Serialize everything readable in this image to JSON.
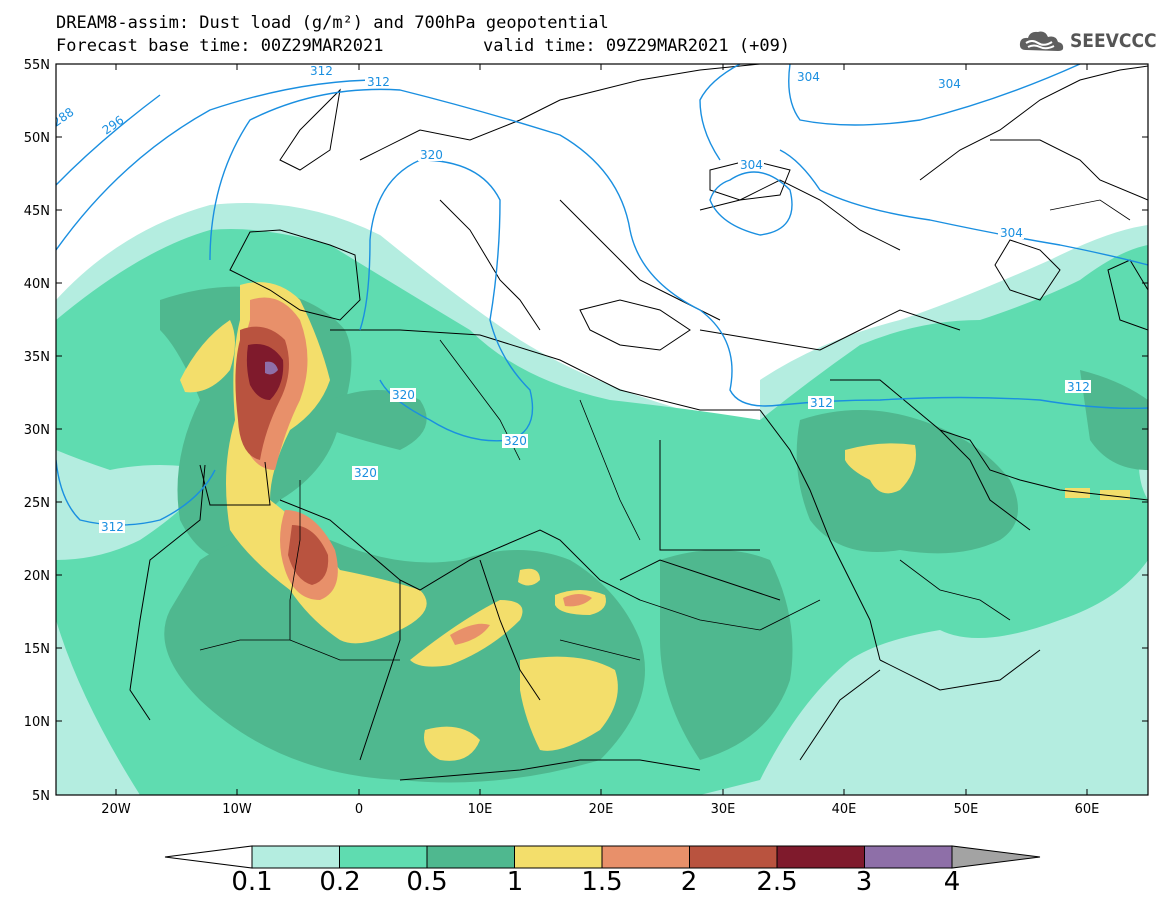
{
  "title_line1": "DREAM8-assim: Dust load (g/m²) and 700hPa geopotential",
  "title_line2": "Forecast base time: 00Z29MAR2021",
  "title_line3": "valid time: 09Z29MAR2021 (+09)",
  "logo_text": "SEEVCCC",
  "lat_labels": [
    "55N",
    "50N",
    "45N",
    "40N",
    "35N",
    "30N",
    "25N",
    "20N",
    "15N",
    "10N",
    "5N"
  ],
  "lon_labels": [
    "20W",
    "10W",
    "0",
    "10E",
    "20E",
    "30E",
    "40E",
    "50E",
    "60E"
  ],
  "contour_labels": {
    "c288": "288",
    "c296": "296",
    "c304a": "304",
    "c304b": "304",
    "c304c": "304",
    "c304d": "304",
    "c312a": "312",
    "c312b": "312",
    "c312c": "312",
    "c312d": "312",
    "c320a": "320",
    "c320b": "320",
    "c320c": "320",
    "c320d": "320"
  },
  "colorbar": {
    "labels": [
      "0.1",
      "0.2",
      "0.5",
      "1",
      "1.5",
      "2",
      "2.5",
      "3",
      "4"
    ],
    "colors": [
      "#b4ede0",
      "#5fdcb0",
      "#4fb88f",
      "#f3de6b",
      "#e8906a",
      "#b9533f",
      "#7f1a2c",
      "#8e6fa8"
    ],
    "under_color": "#ffffff",
    "over_color": "#a3a3a3"
  },
  "colors": {
    "contour": "#1a8fe0",
    "coast": "#000000"
  }
}
